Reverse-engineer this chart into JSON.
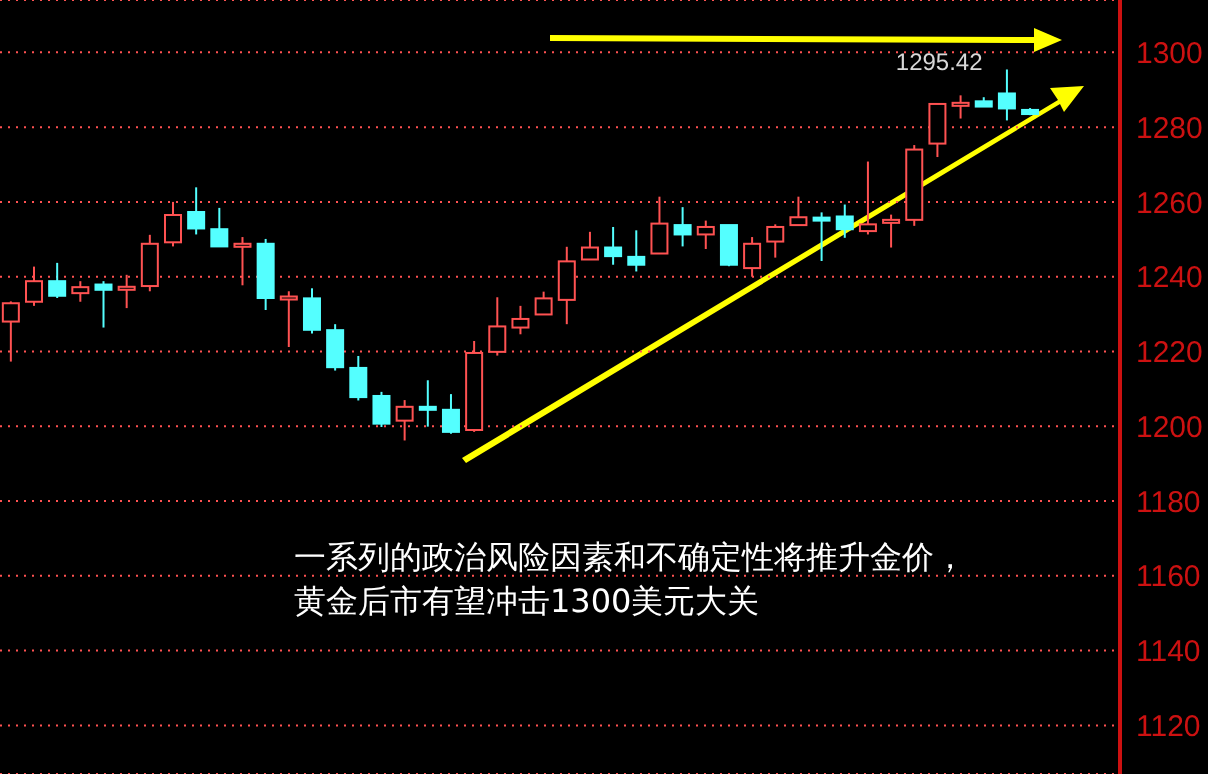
{
  "chart_data": {
    "type": "candlestick",
    "categories": [
      null,
      null,
      null,
      null,
      null,
      null,
      null,
      null,
      null,
      null,
      null,
      null,
      null,
      null,
      null,
      null,
      null,
      null,
      null,
      null,
      null,
      null,
      null,
      null,
      null,
      null,
      null,
      null,
      null,
      null,
      null,
      null,
      null,
      null,
      null,
      null,
      null,
      null,
      null,
      null,
      null,
      null,
      null,
      null,
      null
    ],
    "ohlc": [
      [
        1228.0,
        1233.4,
        1217.3,
        1232.9
      ],
      [
        1233.3,
        1242.7,
        1232.2,
        1238.8
      ],
      [
        1238.8,
        1243.7,
        1234.3,
        1234.9
      ],
      [
        1235.6,
        1238.8,
        1233.3,
        1237.2
      ],
      [
        1237.9,
        1238.8,
        1226.4,
        1236.5
      ],
      [
        1236.5,
        1240.5,
        1231.6,
        1237.3
      ],
      [
        1237.5,
        1251.2,
        1236.1,
        1248.8
      ],
      [
        1249.2,
        1260.0,
        1248.1,
        1256.5
      ],
      [
        1257.3,
        1263.9,
        1251.3,
        1252.9
      ],
      [
        1252.7,
        1258.4,
        1248.1,
        1248.1
      ],
      [
        1248.1,
        1250.6,
        1237.7,
        1248.8
      ],
      [
        1248.8,
        1250.1,
        1231.1,
        1234.3
      ],
      [
        1234.3,
        1236.1,
        1221.2,
        1234.7
      ],
      [
        1234.2,
        1236.9,
        1224.8,
        1225.8
      ],
      [
        1225.7,
        1227.3,
        1214.9,
        1215.8
      ],
      [
        1215.6,
        1218.8,
        1206.9,
        1207.8
      ],
      [
        1208.1,
        1209.2,
        1199.8,
        1200.7
      ],
      [
        1201.5,
        1207.0,
        1196.2,
        1205.2
      ],
      [
        1205.2,
        1212.3,
        1199.9,
        1204.7
      ],
      [
        1204.4,
        1208.6,
        1198.0,
        1198.5
      ],
      [
        1199.0,
        1222.8,
        1198.5,
        1219.6
      ],
      [
        1219.9,
        1234.5,
        1218.9,
        1226.7
      ],
      [
        1226.4,
        1232.2,
        1224.6,
        1228.7
      ],
      [
        1229.9,
        1236.0,
        1229.9,
        1234.2
      ],
      [
        1233.8,
        1248.0,
        1227.3,
        1244.1
      ],
      [
        1244.6,
        1252.0,
        1244.6,
        1247.8
      ],
      [
        1247.8,
        1253.3,
        1243.2,
        1245.5
      ],
      [
        1245.3,
        1252.4,
        1241.4,
        1243.2
      ],
      [
        1246.2,
        1261.4,
        1246.2,
        1254.2
      ],
      [
        1253.8,
        1258.6,
        1248.1,
        1251.3
      ],
      [
        1251.3,
        1255.0,
        1247.4,
        1253.3
      ],
      [
        1253.8,
        1253.8,
        1242.8,
        1243.2
      ],
      [
        1242.3,
        1250.6,
        1240.0,
        1248.8
      ],
      [
        1249.4,
        1254.0,
        1245.1,
        1253.3
      ],
      [
        1253.8,
        1261.4,
        1253.8,
        1255.9
      ],
      [
        1255.8,
        1257.2,
        1244.2,
        1255.4
      ],
      [
        1256.1,
        1259.3,
        1250.4,
        1252.7
      ],
      [
        1252.2,
        1270.8,
        1251.3,
        1254.0
      ],
      [
        1254.7,
        1256.6,
        1247.8,
        1255.2
      ],
      [
        1255.2,
        1275.2,
        1253.6,
        1274.0
      ],
      [
        1275.6,
        1286.2,
        1272.0,
        1286.2
      ],
      [
        1286.2,
        1288.5,
        1282.3,
        1286.5
      ],
      [
        1286.9,
        1288.0,
        1285.5,
        1285.5
      ],
      [
        1289.0,
        1295.42,
        1281.8,
        1285.0
      ],
      [
        1284.6,
        1285.1,
        1283.2,
        1283.5
      ]
    ],
    "colors": [
      "#ff5252",
      "#ff5252",
      "#54ffff",
      "#ff5252",
      "#54ffff",
      "#ff5252",
      "#ff5252",
      "#ff5252",
      "#54ffff",
      "#54ffff",
      "#ff5252",
      "#54ffff",
      "#ff5252",
      "#54ffff",
      "#54ffff",
      "#54ffff",
      "#54ffff",
      "#ff5252",
      "#54ffff",
      "#54ffff",
      "#ff5252",
      "#ff5252",
      "#ff5252",
      "#ff5252",
      "#ff5252",
      "#ff5252",
      "#54ffff",
      "#54ffff",
      "#ff5252",
      "#54ffff",
      "#ff5252",
      "#54ffff",
      "#ff5252",
      "#ff5252",
      "#ff5252",
      "#54ffff",
      "#54ffff",
      "#ff5252",
      "#ff5252",
      "#ff5252",
      "#ff5252",
      "#ff5252",
      "#54ffff",
      "#54ffff",
      "#54ffff"
    ],
    "ylim": [
      1107,
      1314
    ],
    "yticks": [
      1120,
      1140,
      1160,
      1180,
      1200,
      1220,
      1240,
      1260,
      1280,
      1300
    ],
    "grid": "y",
    "tick_labels": "y",
    "annotations": [
      "1295.42",
      "一系列的政治风险因素和不确定性将推升金价，",
      "黄金后市有望冲击1300美元大关"
    ]
  }
}
